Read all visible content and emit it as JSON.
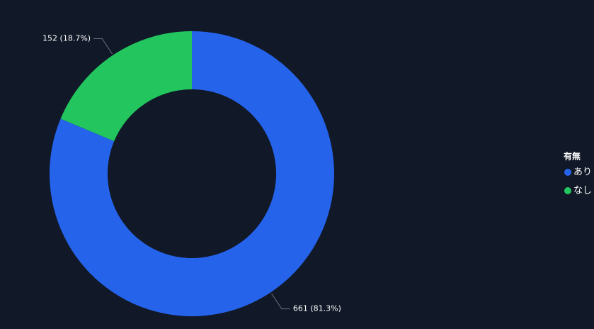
{
  "chart_data": {
    "type": "donut",
    "categories": [
      "あり",
      "なし"
    ],
    "values": [
      661,
      152
    ],
    "value_labels": [
      "661 (81.3%)",
      "152 (18.7%)"
    ],
    "colors": [
      "#2563eb",
      "#22c55e"
    ],
    "legend_title": "有無",
    "legend": "right"
  }
}
